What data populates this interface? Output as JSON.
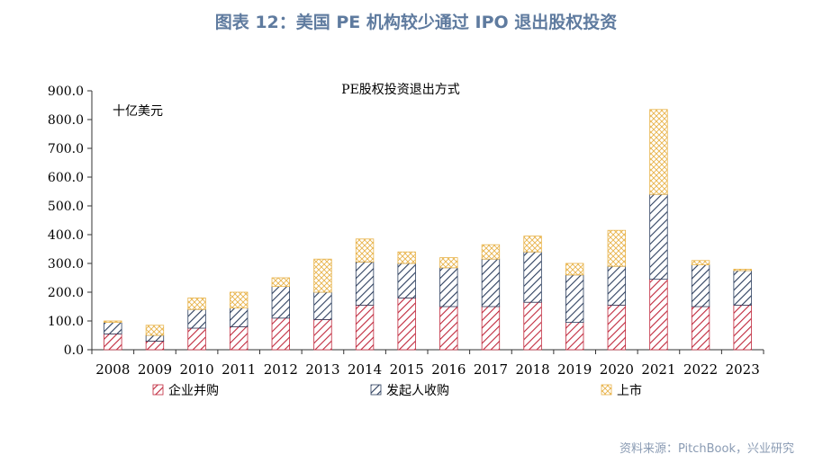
{
  "figure_title": "图表 12：美国 PE 机构较少通过 IPO 退出股权投资",
  "source": "资料来源：PitchBook，兴业研究",
  "colors": {
    "merger": "#c0283c",
    "buyout": "#2c3e5e",
    "ipo": "#e8b34a",
    "axis": "#333333"
  },
  "chart_data": {
    "type": "bar",
    "stacked": true,
    "title": "PE股权投资退出方式",
    "unit_label": "十亿美元",
    "categories": [
      "2008",
      "2009",
      "2010",
      "2011",
      "2012",
      "2013",
      "2014",
      "2015",
      "2016",
      "2017",
      "2018",
      "2019",
      "2020",
      "2021",
      "2022",
      "2023"
    ],
    "series": [
      {
        "name": "企业并购",
        "values": [
          55,
          30,
          75,
          80,
          110,
          105,
          155,
          180,
          150,
          150,
          165,
          95,
          155,
          245,
          150,
          155
        ]
      },
      {
        "name": "发起人收购",
        "values": [
          40,
          20,
          65,
          65,
          110,
          95,
          150,
          120,
          135,
          165,
          175,
          165,
          135,
          295,
          145,
          120
        ]
      },
      {
        "name": "上市",
        "values": [
          5,
          35,
          40,
          55,
          30,
          115,
          80,
          40,
          35,
          50,
          55,
          40,
          125,
          295,
          15,
          5
        ]
      }
    ],
    "ylim": [
      0,
      900
    ],
    "yticks": [
      "0.0",
      "100.0",
      "200.0",
      "300.0",
      "400.0",
      "500.0",
      "600.0",
      "700.0",
      "800.0",
      "900.0"
    ],
    "xlabel": "",
    "ylabel": "",
    "legend_position": "bottom",
    "grid": false
  }
}
